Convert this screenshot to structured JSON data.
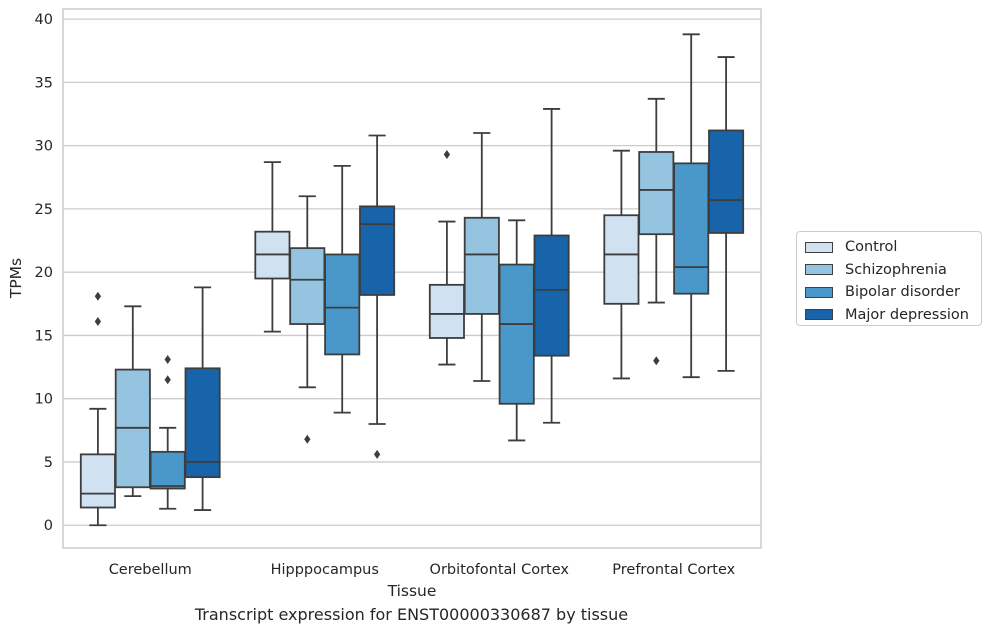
{
  "chart_data": {
    "type": "box",
    "xlabel": "Tissue",
    "ylabel": "TPMs",
    "caption": "Transcript expression for ENST00000330687 by tissue",
    "ylim": [
      -1.8,
      40.8
    ],
    "yticks": [
      0,
      5,
      10,
      15,
      20,
      25,
      30,
      35,
      40
    ],
    "grid": "horizontal",
    "legend_position": "right",
    "categories": [
      "Cerebellum",
      "Hipppocampus",
      "Orbitofontal Cortex",
      "Prefrontal Cortex"
    ],
    "series": [
      {
        "name": "Control",
        "color": "#d0e1f2",
        "boxes": [
          {
            "whislo": 0.0,
            "q1": 1.4,
            "med": 2.5,
            "q3": 5.6,
            "whishi": 9.2,
            "fliers": [
              16.1,
              18.1
            ]
          },
          {
            "whislo": 15.3,
            "q1": 19.5,
            "med": 21.4,
            "q3": 23.2,
            "whishi": 28.7,
            "fliers": []
          },
          {
            "whislo": 12.7,
            "q1": 14.8,
            "med": 16.7,
            "q3": 19.0,
            "whishi": 24.0,
            "fliers": [
              29.3
            ]
          },
          {
            "whislo": 11.6,
            "q1": 17.5,
            "med": 21.4,
            "q3": 24.5,
            "whishi": 29.6,
            "fliers": []
          }
        ]
      },
      {
        "name": "Schizophrenia",
        "color": "#94c4df",
        "boxes": [
          {
            "whislo": 2.3,
            "q1": 3.0,
            "med": 7.7,
            "q3": 12.3,
            "whishi": 17.3,
            "fliers": []
          },
          {
            "whislo": 10.9,
            "q1": 15.9,
            "med": 19.4,
            "q3": 21.9,
            "whishi": 26.0,
            "fliers": [
              6.8
            ]
          },
          {
            "whislo": 11.4,
            "q1": 16.7,
            "med": 21.4,
            "q3": 24.3,
            "whishi": 31.0,
            "fliers": []
          },
          {
            "whislo": 17.6,
            "q1": 23.0,
            "med": 26.5,
            "q3": 29.5,
            "whishi": 33.7,
            "fliers": [
              13.0
            ]
          }
        ]
      },
      {
        "name": "Bipolar disorder",
        "color": "#4a98c9",
        "boxes": [
          {
            "whislo": 1.3,
            "q1": 2.9,
            "med": 3.1,
            "q3": 5.8,
            "whishi": 7.7,
            "fliers": [
              11.5,
              13.1
            ]
          },
          {
            "whislo": 8.9,
            "q1": 13.5,
            "med": 17.2,
            "q3": 21.4,
            "whishi": 28.4,
            "fliers": []
          },
          {
            "whislo": 6.7,
            "q1": 9.6,
            "med": 15.9,
            "q3": 20.6,
            "whishi": 24.1,
            "fliers": []
          },
          {
            "whislo": 11.7,
            "q1": 18.3,
            "med": 20.4,
            "q3": 28.6,
            "whishi": 38.8,
            "fliers": []
          }
        ]
      },
      {
        "name": "Major depression",
        "color": "#1764ab",
        "boxes": [
          {
            "whislo": 1.2,
            "q1": 3.8,
            "med": 5.0,
            "q3": 12.4,
            "whishi": 18.8,
            "fliers": []
          },
          {
            "whislo": 8.0,
            "q1": 18.2,
            "med": 23.8,
            "q3": 25.2,
            "whishi": 30.8,
            "fliers": [
              5.6
            ]
          },
          {
            "whislo": 8.1,
            "q1": 13.4,
            "med": 18.6,
            "q3": 22.9,
            "whishi": 32.9,
            "fliers": []
          },
          {
            "whislo": 12.2,
            "q1": 23.1,
            "med": 25.7,
            "q3": 31.2,
            "whishi": 37.0,
            "fliers": []
          }
        ]
      }
    ]
  }
}
